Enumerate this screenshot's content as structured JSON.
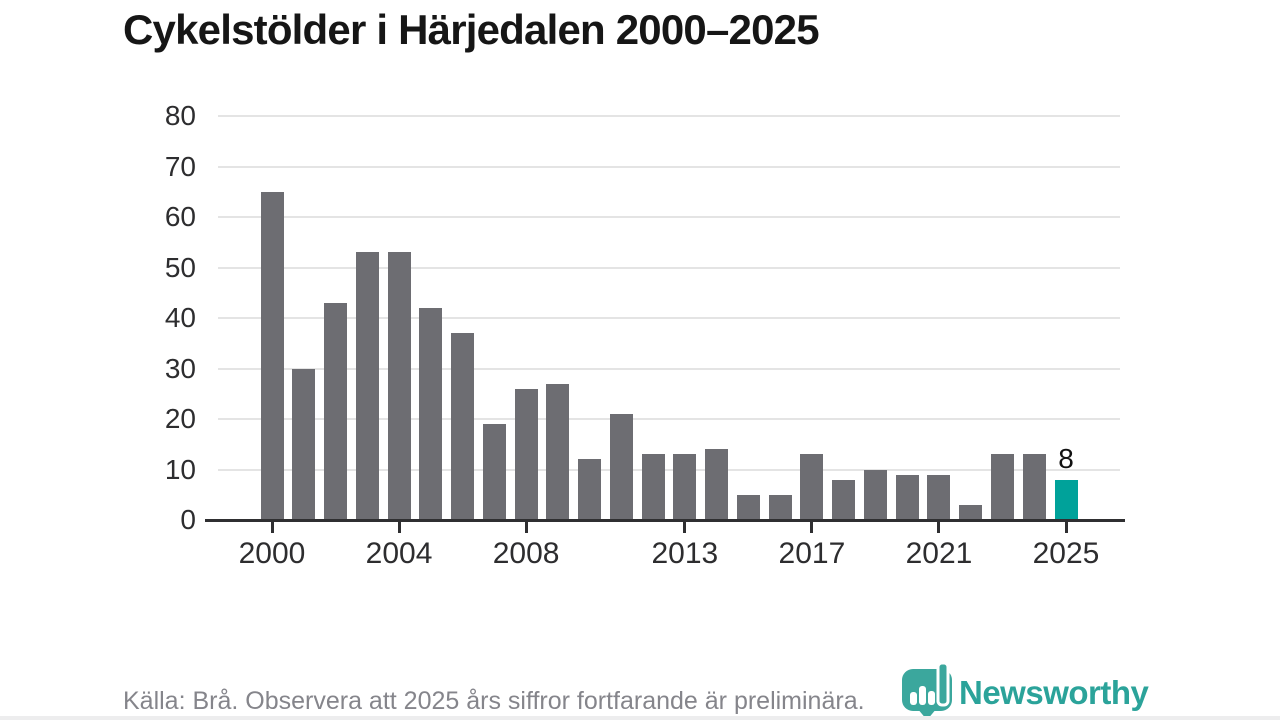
{
  "title": "Cykelstölder i Härjedalen 2000–2025",
  "footer": {
    "source_note": "Källa: Brå. Observera att 2025 års siffror fortfarande är preliminära."
  },
  "logo": {
    "name": "Newsworthy",
    "color": "#2ba39a"
  },
  "chart_data": {
    "type": "bar",
    "title": "Cykelstölder i Härjedalen 2000–2025",
    "xlabel": "",
    "ylabel": "",
    "categories": [
      2000,
      2001,
      2002,
      2003,
      2004,
      2005,
      2006,
      2007,
      2008,
      2009,
      2010,
      2011,
      2012,
      2013,
      2014,
      2015,
      2016,
      2017,
      2018,
      2019,
      2020,
      2021,
      2022,
      2023,
      2024,
      2025
    ],
    "values": [
      65,
      30,
      43,
      53,
      53,
      42,
      37,
      19,
      26,
      27,
      12,
      21,
      13,
      13,
      14,
      5,
      5,
      13,
      8,
      10,
      9,
      9,
      3,
      13,
      13,
      8
    ],
    "ylim": [
      0,
      80
    ],
    "yticks": [
      0,
      10,
      20,
      30,
      40,
      50,
      60,
      70,
      80
    ],
    "xticks": [
      2000,
      2004,
      2008,
      2013,
      2017,
      2021,
      2025
    ],
    "grid": true,
    "legend": false,
    "bar_color": "#6d6d72",
    "highlight": {
      "year": 2025,
      "value": 8,
      "label": "8",
      "color": "#00a29a"
    },
    "source": "Källa: Brå. Observera att 2025 års siffror fortfarande är preliminära."
  }
}
